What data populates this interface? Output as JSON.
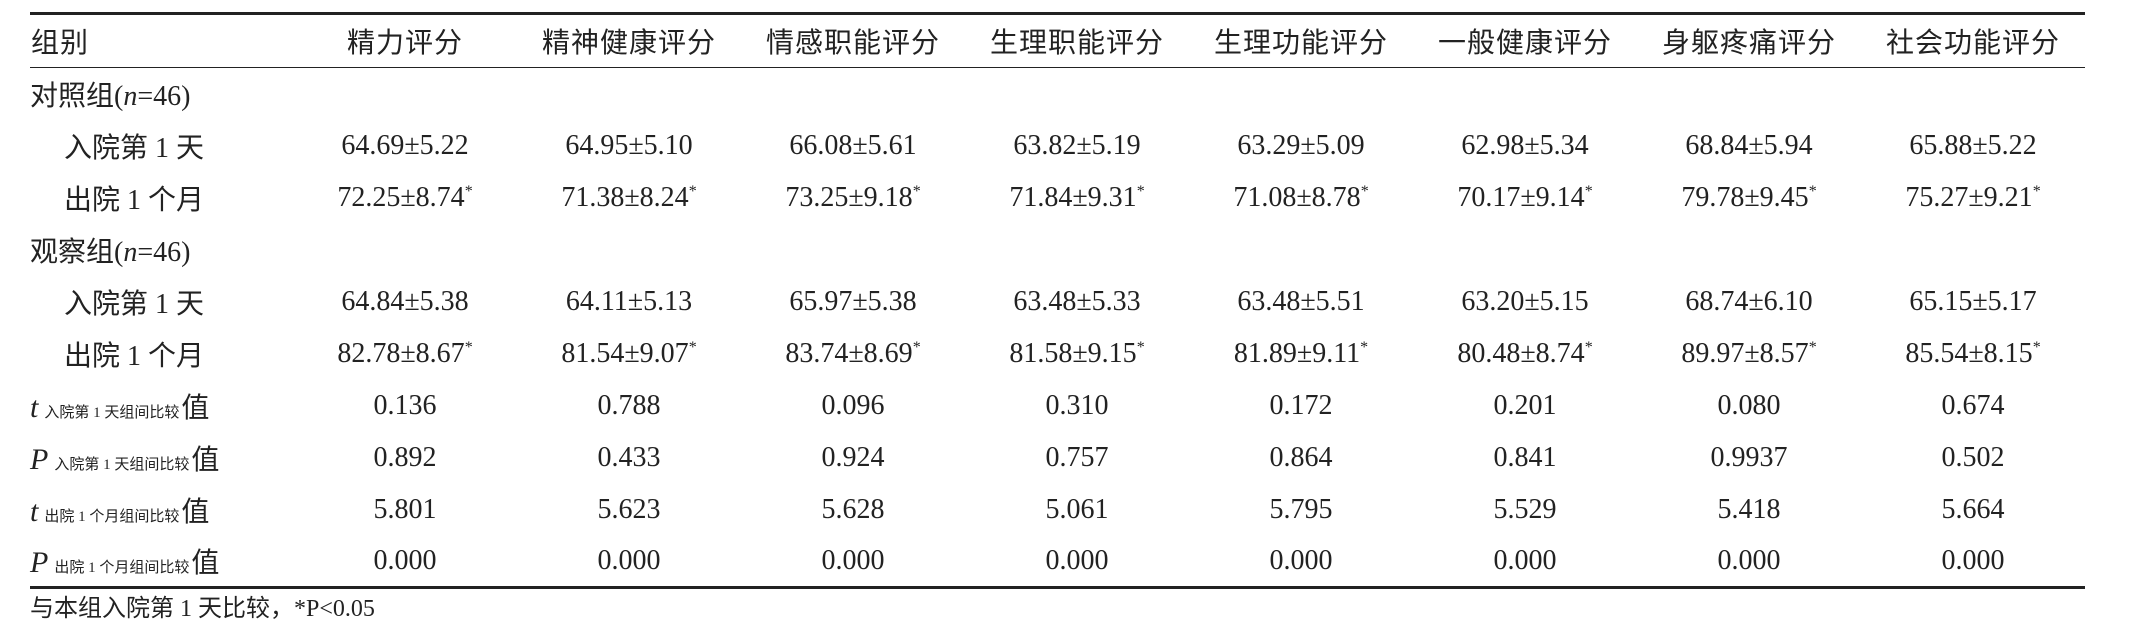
{
  "table": {
    "header": [
      "组别",
      "精力评分",
      "精神健康评分",
      "情感职能评分",
      "生理职能评分",
      "生理功能评分",
      "一般健康评分",
      "身躯疼痛评分",
      "社会功能评分"
    ],
    "rows": [
      {
        "label": [
          "对照组(",
          "n",
          "=46)"
        ]
      },
      {
        "label": "入院第 1 天",
        "cells": [
          "64.69±5.22",
          "64.95±5.10",
          "66.08±5.61",
          "63.82±5.19",
          "63.29±5.09",
          "62.98±5.34",
          "68.84±5.94",
          "65.88±5.22"
        ]
      },
      {
        "label": "出院 1 个月",
        "cells": [
          {
            "text": "72.25±8.74",
            "sup": "*"
          },
          {
            "text": "71.38±8.24",
            "sup": "*"
          },
          {
            "text": "73.25±9.18",
            "sup": "*"
          },
          {
            "text": "71.84±9.31",
            "sup": "*"
          },
          {
            "text": "71.08±8.78",
            "sup": "*"
          },
          {
            "text": "70.17±9.14",
            "sup": "*"
          },
          {
            "text": "79.78±9.45",
            "sup": "*"
          },
          {
            "text": "75.27±9.21",
            "sup": "*"
          }
        ]
      },
      {
        "label": [
          "观察组(",
          "n",
          "=46)"
        ]
      },
      {
        "label": "入院第 1 天",
        "cells": [
          "64.84±5.38",
          "64.11±5.13",
          "65.97±5.38",
          "63.48±5.33",
          "63.48±5.51",
          "63.20±5.15",
          "68.74±6.10",
          "65.15±5.17"
        ]
      },
      {
        "label": "出院 1 个月",
        "cells": [
          {
            "text": "82.78±8.67",
            "sup": "*"
          },
          {
            "text": "81.54±9.07",
            "sup": "*"
          },
          {
            "text": "83.74±8.69",
            "sup": "*"
          },
          {
            "text": "81.58±9.15",
            "sup": "*"
          },
          {
            "text": "81.89±9.11",
            "sup": "*"
          },
          {
            "text": "80.48±8.74",
            "sup": "*"
          },
          {
            "text": "89.97±8.57",
            "sup": "*"
          },
          {
            "text": "85.54±8.15",
            "sup": "*"
          }
        ]
      },
      {
        "label": {
          "symbol": "t",
          "sub": "入院第 1 天组间比较",
          "tail": "值"
        },
        "cells": [
          "0.136",
          "0.788",
          "0.096",
          "0.310",
          "0.172",
          "0.201",
          "0.080",
          "0.674"
        ]
      },
      {
        "label": {
          "symbol": "P",
          "sub": "入院第 1 天组间比较",
          "tail": "值"
        },
        "cells": [
          "0.892",
          "0.433",
          "0.924",
          "0.757",
          "0.864",
          "0.841",
          "0.9937",
          "0.502"
        ]
      },
      {
        "label": {
          "symbol": "t",
          "sub": "出院 1 个月组间比较",
          "tail": "值"
        },
        "cells": [
          "5.801",
          "5.623",
          "5.628",
          "5.061",
          "5.795",
          "5.529",
          "5.418",
          "5.664"
        ]
      },
      {
        "label": {
          "symbol": "P",
          "sub": "出院 1 个月组间比较",
          "tail": "值"
        },
        "cells": [
          "0.000",
          "0.000",
          "0.000",
          "0.000",
          "0.000",
          "0.000",
          "0.000",
          "0.000"
        ]
      }
    ],
    "note": "与本组入院第 1 天比较，*P<0.05"
  }
}
